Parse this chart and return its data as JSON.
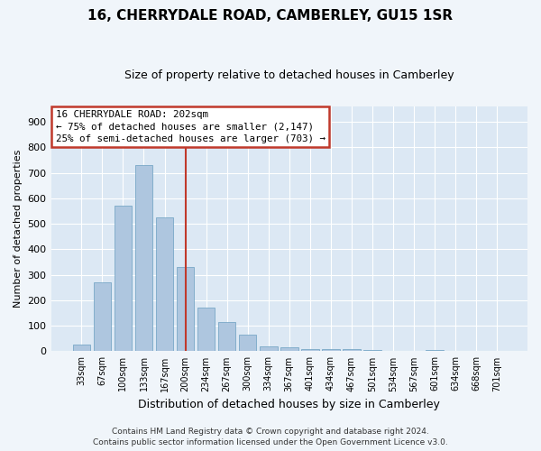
{
  "title": "16, CHERRYDALE ROAD, CAMBERLEY, GU15 1SR",
  "subtitle": "Size of property relative to detached houses in Camberley",
  "xlabel": "Distribution of detached houses by size in Camberley",
  "ylabel": "Number of detached properties",
  "categories": [
    "33sqm",
    "67sqm",
    "100sqm",
    "133sqm",
    "167sqm",
    "200sqm",
    "234sqm",
    "267sqm",
    "300sqm",
    "334sqm",
    "367sqm",
    "401sqm",
    "434sqm",
    "467sqm",
    "501sqm",
    "534sqm",
    "567sqm",
    "601sqm",
    "634sqm",
    "668sqm",
    "701sqm"
  ],
  "values": [
    25,
    270,
    570,
    730,
    525,
    330,
    170,
    115,
    65,
    20,
    15,
    10,
    10,
    7,
    5,
    0,
    0,
    5,
    0,
    0,
    0
  ],
  "bar_color": "#aec6df",
  "bar_edge_color": "#6a9ec0",
  "vline_x": 5.0,
  "vline_color": "#c0392b",
  "annotation_text": "16 CHERRYDALE ROAD: 202sqm\n← 75% of detached houses are smaller (2,147)\n25% of semi-detached houses are larger (703) →",
  "annotation_box_color": "#c0392b",
  "plot_bg_color": "#dce8f4",
  "fig_bg_color": "#f0f5fa",
  "grid_color": "#ffffff",
  "ylim": [
    0,
    960
  ],
  "yticks": [
    0,
    100,
    200,
    300,
    400,
    500,
    600,
    700,
    800,
    900
  ],
  "footer_line1": "Contains HM Land Registry data © Crown copyright and database right 2024.",
  "footer_line2": "Contains public sector information licensed under the Open Government Licence v3.0."
}
